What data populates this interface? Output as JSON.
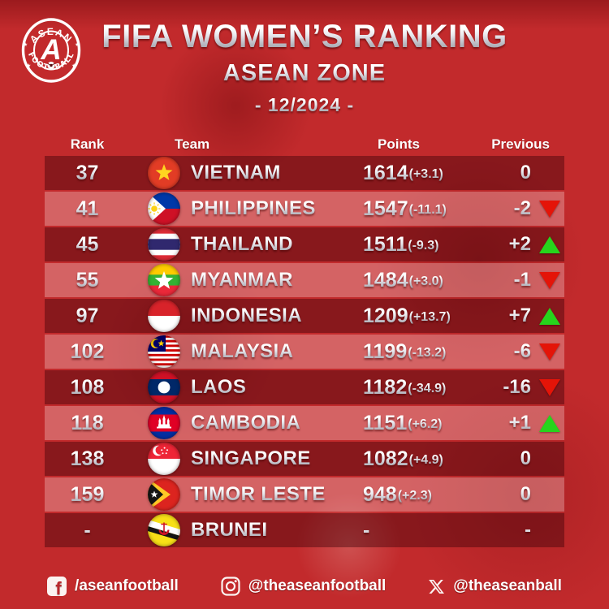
{
  "header": {
    "logo": {
      "top": "ASEAN",
      "bottom": "FOOT★BALL",
      "letter": "A"
    }
  },
  "chart_data": {
    "type": "table",
    "title": "FIFA WOMEN’S RANKING",
    "subtitle": "ASEAN ZONE",
    "period": "- 12/2024 -",
    "columns": [
      "Rank",
      "Team",
      "Points",
      "Previous"
    ],
    "rows": [
      {
        "rank": "37",
        "team": "VIETNAM",
        "flag": "vietnam",
        "points": "1614",
        "points_change": "(+3.1)",
        "previous": "0",
        "trend": "none"
      },
      {
        "rank": "41",
        "team": "PHILIPPINES",
        "flag": "philippines",
        "points": "1547",
        "points_change": "(-11.1)",
        "previous": "-2",
        "trend": "down"
      },
      {
        "rank": "45",
        "team": "THAILAND",
        "flag": "thailand",
        "points": "1511",
        "points_change": "(-9.3)",
        "previous": "+2",
        "trend": "up"
      },
      {
        "rank": "55",
        "team": "MYANMAR",
        "flag": "myanmar",
        "points": "1484",
        "points_change": "(+3.0)",
        "previous": "-1",
        "trend": "down"
      },
      {
        "rank": "97",
        "team": "INDONESIA",
        "flag": "indonesia",
        "points": "1209",
        "points_change": "(+13.7)",
        "previous": "+7",
        "trend": "up"
      },
      {
        "rank": "102",
        "team": "MALAYSIA",
        "flag": "malaysia",
        "points": "1199",
        "points_change": "(-13.2)",
        "previous": "-6",
        "trend": "down"
      },
      {
        "rank": "108",
        "team": "LAOS",
        "flag": "laos",
        "points": "1182",
        "points_change": "(-34.9)",
        "previous": "-16",
        "trend": "down"
      },
      {
        "rank": "118",
        "team": "CAMBODIA",
        "flag": "cambodia",
        "points": "1151",
        "points_change": "(+6.2)",
        "previous": "+1",
        "trend": "up"
      },
      {
        "rank": "138",
        "team": "SINGAPORE",
        "flag": "singapore",
        "points": "1082",
        "points_change": "(+4.9)",
        "previous": "0",
        "trend": "none"
      },
      {
        "rank": "159",
        "team": "TIMOR LESTE",
        "flag": "timor-leste",
        "points": "948",
        "points_change": "(+2.3)",
        "previous": "0",
        "trend": "none"
      },
      {
        "rank": "-",
        "team": "BRUNEI",
        "flag": "brunei",
        "points": "-",
        "points_change": "",
        "previous": "-",
        "trend": "none"
      }
    ]
  },
  "footer": {
    "facebook": "/aseanfootball",
    "instagram": "@theaseanfootball",
    "x": "@theaseanball"
  },
  "colors": {
    "background": "#c22a2c",
    "row_dark": "#8c181d",
    "row_light": "#d16366",
    "trend_up": "#27d41c",
    "trend_down": "#e41408",
    "text": "#ffffff"
  }
}
